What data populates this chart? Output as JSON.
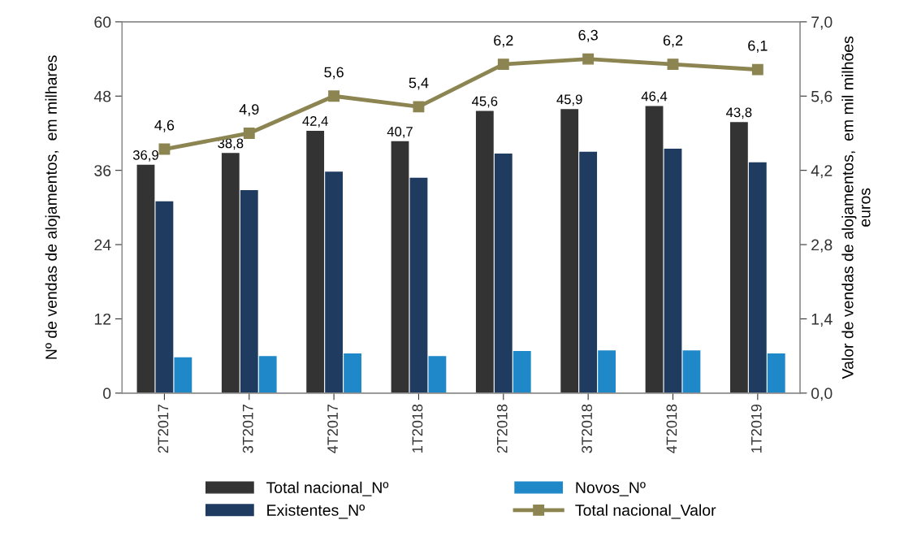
{
  "chart_data": {
    "type": "bar",
    "ylabel": "Nº de vendas de alojamentos,  em milhares",
    "y2label": "Valor de vendas de alojamentos,  em mil milhões\neuros",
    "categories": [
      "2T2017",
      "3T2017",
      "4T2017",
      "1T2018",
      "2T2018",
      "3T2018",
      "4T2018",
      "1T2019"
    ],
    "series": [
      {
        "name": "Total nacional_Nº",
        "color": "#333333",
        "values": [
          36.9,
          38.8,
          42.4,
          40.7,
          45.6,
          45.9,
          46.4,
          43.8
        ],
        "value_labels": [
          "36,9",
          "38,8",
          "42,4",
          "40,7",
          "45,6",
          "45,9",
          "46,4",
          "43,8"
        ]
      },
      {
        "name": "Existentes_Nº",
        "color": "#1f3b60",
        "values": [
          31.0,
          32.8,
          35.8,
          34.8,
          38.7,
          39.0,
          39.5,
          37.3
        ]
      },
      {
        "name": "Novos_Nº",
        "color": "#1f88c9",
        "values": [
          5.8,
          6.0,
          6.4,
          6.0,
          6.8,
          6.9,
          6.9,
          6.4
        ]
      },
      {
        "name": "Total nacional_Valor",
        "type": "line",
        "axis": "y2",
        "color": "#8c8552",
        "marker": "square",
        "values": [
          4.6,
          4.9,
          5.6,
          5.4,
          6.2,
          6.3,
          6.2,
          6.1
        ],
        "value_labels": [
          "4,6",
          "4,9",
          "5,6",
          "5,4",
          "6,2",
          "6,3",
          "6,2",
          "6,1"
        ]
      }
    ],
    "ylim": [
      0,
      60
    ],
    "yticks": [
      0,
      12,
      24,
      36,
      48,
      60
    ],
    "y2lim": [
      0,
      7
    ],
    "y2ticks": [
      {
        "value": 0,
        "label": "0,0"
      },
      {
        "value": 1.4,
        "label": "1,4"
      },
      {
        "value": 2.8,
        "label": "2,8"
      },
      {
        "value": 4.2,
        "label": "4,2"
      },
      {
        "value": 5.6,
        "label": "5,6"
      },
      {
        "value": 7,
        "label": "7,0"
      }
    ],
    "grid": false,
    "legend": "bottom"
  }
}
